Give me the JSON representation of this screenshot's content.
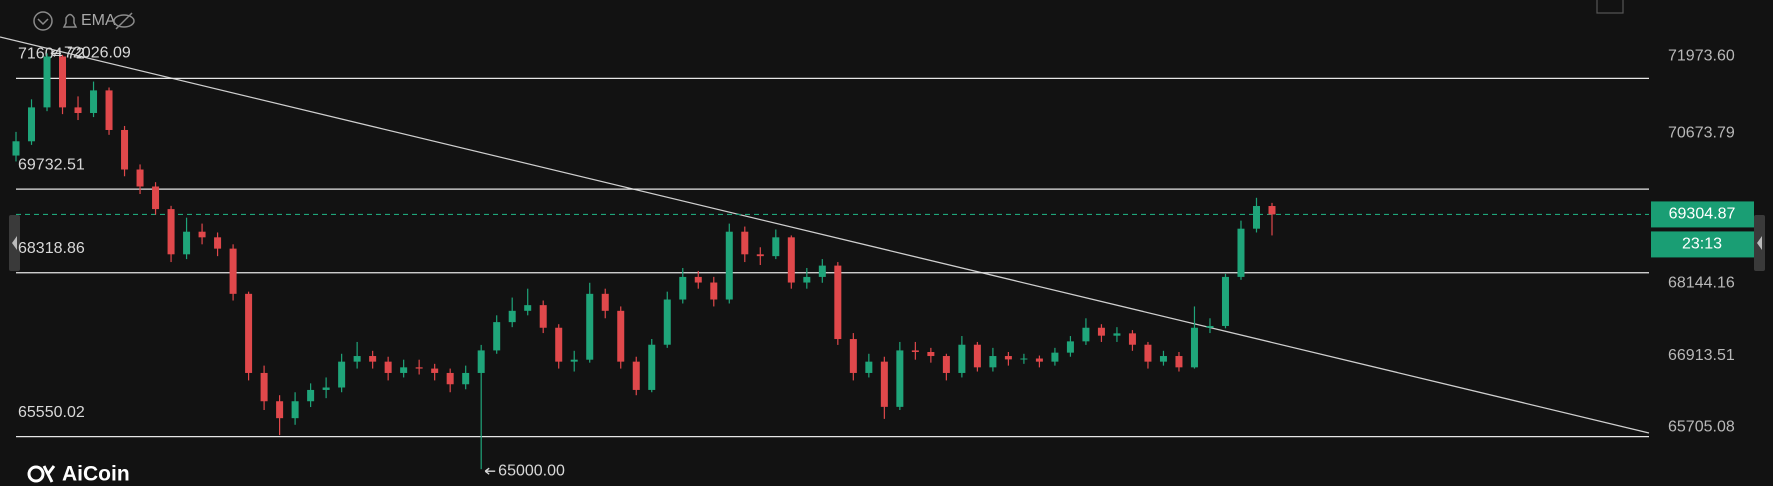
{
  "chart_data": {
    "type": "candlestick",
    "header": "EMA",
    "watermark": "AiCoin",
    "up_color": "#1fa57a",
    "down_color": "#e0484b",
    "ylim": [
      64715.6,
      72928.6
    ],
    "yticks": [
      {
        "value": 71973.6,
        "label": "71973.60"
      },
      70673.79,
      68144.16,
      66913.51,
      65705.08
    ],
    "levels": [
      71604.72,
      69732.51,
      68318.86,
      65550.02
    ],
    "extremes": [
      {
        "value": 72026.09,
        "label": "72026.09"
      },
      {
        "value": 65000,
        "label": "65000.00"
      }
    ],
    "last_price": 69304.87,
    "countdown": "23:13",
    "open": [
      70300,
      70541,
      71114,
      71974,
      71114,
      71019,
      71401,
      70732,
      70064,
      69777,
      69395,
      68631,
      69013,
      68918,
      68727,
      67963,
      66626,
      66148,
      65862,
      66148,
      66339,
      66380,
      66817,
      66912,
      66817,
      66626,
      66721,
      66700,
      66626,
      66435,
      66626,
      67007,
      67485,
      67676,
      67772,
      67390,
      66817,
      66850,
      67963,
      67676,
      66817,
      66339,
      67103,
      67867,
      68249,
      68154,
      67867,
      69013,
      68631,
      68600,
      68918,
      68154,
      68249,
      68440,
      67199,
      66626,
      66817,
      66053,
      67007,
      66980,
      66912,
      66626,
      67103,
      66721,
      66912,
      66855,
      66870,
      66817,
      66969,
      67160,
      67390,
      67256,
      67295,
      67103,
      66817,
      66912,
      66721,
      67390,
      67420,
      68249,
      69064,
      69447
    ],
    "high": [
      70700,
      71250,
      72026.09,
      72000,
      71300,
      71550,
      71450,
      70800,
      70150,
      69850,
      69450,
      69250,
      69150,
      69000,
      68800,
      68000,
      66750,
      66250,
      66300,
      66450,
      66550,
      66950,
      67150,
      67000,
      66900,
      66850,
      66850,
      66780,
      66700,
      66750,
      67100,
      67600,
      67900,
      68050,
      67850,
      67450,
      67000,
      68150,
      68050,
      67750,
      66900,
      67200,
      68000,
      68400,
      68350,
      68250,
      69150,
      69100,
      68750,
      69050,
      68950,
      68400,
      68550,
      68500,
      67300,
      66950,
      66900,
      67150,
      67150,
      67050,
      66950,
      67250,
      67150,
      67050,
      66980,
      66950,
      66920,
      67050,
      67250,
      67550,
      67450,
      67400,
      67350,
      67150,
      67000,
      66980,
      67750,
      67550,
      68300,
      69200,
      69586,
      69500
    ],
    "low": [
      70200,
      70480,
      71050,
      71000,
      70900,
      70950,
      70650,
      69950,
      69650,
      69300,
      68500,
      68550,
      68800,
      68600,
      67850,
      66500,
      66000,
      65575,
      65750,
      66050,
      66200,
      66300,
      66700,
      66700,
      66500,
      66550,
      66600,
      66500,
      66300,
      66350,
      65000,
      66950,
      67400,
      67600,
      67300,
      66700,
      66650,
      66800,
      67550,
      66700,
      66250,
      66300,
      67050,
      67800,
      68050,
      67750,
      67800,
      68500,
      68450,
      68550,
      68050,
      68050,
      68150,
      67100,
      66500,
      66550,
      65850,
      66000,
      66850,
      66800,
      66500,
      66550,
      66650,
      66650,
      66750,
      66780,
      66720,
      66750,
      66900,
      67100,
      67150,
      67150,
      67000,
      66700,
      66750,
      66650,
      66700,
      67300,
      67380,
      68200,
      69000,
      68950
    ],
    "close": [
      70541,
      71114,
      71974,
      71114,
      71019,
      71401,
      70732,
      70064,
      69777,
      69395,
      68631,
      69013,
      68918,
      68727,
      67963,
      66626,
      66148,
      65862,
      66148,
      66339,
      66380,
      66817,
      66912,
      66817,
      66626,
      66721,
      66700,
      66626,
      66435,
      66626,
      67007,
      67485,
      67676,
      67772,
      67390,
      66817,
      66850,
      67963,
      67676,
      66817,
      66339,
      67103,
      67867,
      68249,
      68154,
      67867,
      69013,
      68631,
      68600,
      68918,
      68154,
      68249,
      68440,
      67199,
      66626,
      66817,
      66053,
      67007,
      66980,
      66912,
      66626,
      67103,
      66721,
      66912,
      66855,
      66870,
      66817,
      66969,
      67160,
      67390,
      67256,
      67295,
      67103,
      66817,
      66912,
      66721,
      67390,
      67420,
      68249,
      69064,
      69447,
      69304.87
    ]
  }
}
